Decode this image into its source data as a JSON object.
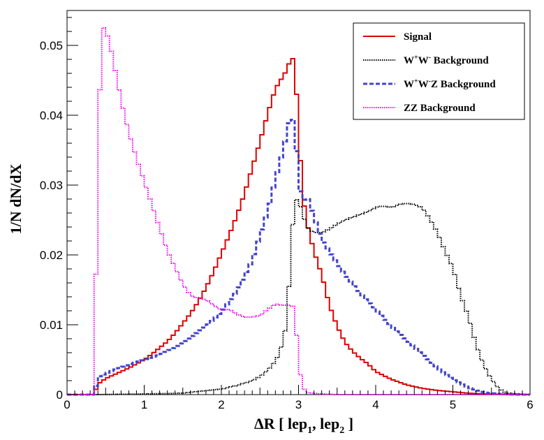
{
  "chart_data": {
    "type": "line",
    "title": "",
    "xlabel": "ΔR [ lep1, lep2 ]",
    "xlabel_parts": {
      "prefix": "ΔR [ lep",
      "sub1": "1",
      "mid": ", lep",
      "sub2": "2",
      "suffix": " ]"
    },
    "ylabel": "1/N dN/dX",
    "xlim": [
      0,
      6
    ],
    "ylim": [
      0,
      0.055
    ],
    "x_ticks": [
      "0",
      "1",
      "2",
      "3",
      "4",
      "5",
      "6"
    ],
    "y_ticks": [
      "0",
      "0.01",
      "0.02",
      "0.03",
      "0.04",
      "0.05"
    ],
    "bin_width": 0.05,
    "legend_position": "top-right",
    "series": [
      {
        "name": "Signal",
        "legend_parts": {
          "base": "Signal"
        },
        "color": "#dd0000",
        "dash": "solid",
        "x": [
          0.35,
          0.4,
          0.5,
          0.6,
          0.7,
          0.8,
          0.9,
          1.0,
          1.1,
          1.2,
          1.3,
          1.4,
          1.5,
          1.6,
          1.7,
          1.8,
          1.9,
          2.0,
          2.1,
          2.2,
          2.3,
          2.4,
          2.5,
          2.6,
          2.7,
          2.8,
          2.85,
          2.9,
          2.95,
          3.0,
          3.05,
          3.1,
          3.2,
          3.3,
          3.4,
          3.5,
          3.6,
          3.7,
          3.8,
          3.9,
          4.0,
          4.2,
          4.4,
          4.6,
          4.8,
          5.0,
          5.2,
          5.4,
          5.6,
          5.8,
          6.0
        ],
        "y": [
          0.0,
          0.0015,
          0.0023,
          0.0028,
          0.0033,
          0.0038,
          0.0044,
          0.005,
          0.0058,
          0.0067,
          0.0076,
          0.0088,
          0.0102,
          0.0116,
          0.0133,
          0.0153,
          0.0176,
          0.0202,
          0.0228,
          0.0256,
          0.0288,
          0.0325,
          0.0362,
          0.0402,
          0.0438,
          0.0456,
          0.0465,
          0.0482,
          0.048,
          0.038,
          0.029,
          0.025,
          0.0205,
          0.0172,
          0.0128,
          0.0098,
          0.0075,
          0.0062,
          0.0052,
          0.0044,
          0.0033,
          0.0022,
          0.0014,
          0.0009,
          0.0006,
          0.0004,
          0.0002,
          0.0001,
          5e-05,
          0.0,
          0.0
        ]
      },
      {
        "name": "W+W- Background",
        "legend_parts": {
          "base": "W",
          "sup1": "+",
          "mid": "W",
          "sup2": "-",
          "suffix": " Background"
        },
        "color": "#000000",
        "dash": "dotted",
        "x": [
          0.35,
          1.0,
          1.5,
          2.0,
          2.2,
          2.4,
          2.5,
          2.6,
          2.7,
          2.75,
          2.8,
          2.85,
          2.9,
          2.95,
          3.0,
          3.05,
          3.1,
          3.2,
          3.3,
          3.4,
          3.5,
          3.6,
          3.7,
          3.8,
          3.9,
          4.0,
          4.1,
          4.2,
          4.3,
          4.4,
          4.5,
          4.6,
          4.7,
          4.8,
          4.9,
          5.0,
          5.1,
          5.2,
          5.3,
          5.4,
          5.5,
          5.6,
          5.7,
          6.0
        ],
        "y": [
          0.0,
          0.0001,
          0.0002,
          0.0008,
          0.0013,
          0.002,
          0.0026,
          0.0035,
          0.0048,
          0.0058,
          0.0078,
          0.0105,
          0.0205,
          0.0282,
          0.0276,
          0.0262,
          0.024,
          0.0232,
          0.0232,
          0.0237,
          0.0244,
          0.025,
          0.0254,
          0.0258,
          0.0262,
          0.0268,
          0.027,
          0.0268,
          0.0272,
          0.0274,
          0.0272,
          0.0268,
          0.0252,
          0.0232,
          0.0205,
          0.0182,
          0.0142,
          0.0112,
          0.0072,
          0.0042,
          0.0022,
          0.0008,
          0.0002,
          0.0
        ]
      },
      {
        "name": "W+W-Z Background",
        "legend_parts": {
          "base": "W",
          "sup1": "+",
          "mid": "W",
          "sup2": "-",
          "suffix": "Z Background"
        },
        "color": "#4444cc",
        "dash": "dashed",
        "x": [
          0.35,
          0.4,
          0.6,
          0.8,
          1.0,
          1.2,
          1.4,
          1.6,
          1.8,
          2.0,
          2.2,
          2.4,
          2.5,
          2.6,
          2.7,
          2.8,
          2.85,
          2.9,
          2.95,
          3.0,
          3.05,
          3.1,
          3.2,
          3.3,
          3.4,
          3.5,
          3.6,
          3.8,
          4.0,
          4.2,
          4.4,
          4.6,
          4.8,
          5.0,
          5.2,
          5.4,
          5.6,
          5.8,
          6.0
        ],
        "y": [
          0.0,
          0.0025,
          0.0035,
          0.0043,
          0.005,
          0.0057,
          0.0068,
          0.0082,
          0.0098,
          0.0118,
          0.0148,
          0.0192,
          0.0228,
          0.0262,
          0.0308,
          0.035,
          0.0375,
          0.0402,
          0.0385,
          0.0312,
          0.027,
          0.0288,
          0.0255,
          0.0222,
          0.0205,
          0.0188,
          0.0172,
          0.0145,
          0.0122,
          0.0098,
          0.0078,
          0.0058,
          0.0038,
          0.0022,
          0.001,
          0.0003,
          0.0001,
          0.0,
          0.0
        ]
      },
      {
        "name": "ZZ Background",
        "legend_parts": {
          "base": "ZZ Background"
        },
        "color": "#ee00ee",
        "dash": "dotted",
        "x": [
          0.35,
          0.4,
          0.45,
          0.5,
          0.55,
          0.6,
          0.7,
          0.8,
          0.9,
          1.0,
          1.1,
          1.2,
          1.3,
          1.4,
          1.5,
          1.6,
          1.7,
          1.8,
          1.9,
          2.0,
          2.1,
          2.2,
          2.3,
          2.4,
          2.5,
          2.6,
          2.7,
          2.8,
          2.9,
          2.95,
          3.0,
          3.05,
          3.1,
          3.3,
          3.5,
          6.0
        ],
        "y": [
          0.0,
          0.0345,
          0.0528,
          0.0522,
          0.0505,
          0.0478,
          0.0422,
          0.0375,
          0.0338,
          0.0305,
          0.0272,
          0.0238,
          0.0206,
          0.0182,
          0.0158,
          0.0142,
          0.0138,
          0.0136,
          0.0128,
          0.0121,
          0.0122,
          0.0115,
          0.0111,
          0.0111,
          0.0113,
          0.0122,
          0.013,
          0.0128,
          0.0128,
          0.0125,
          0.0045,
          0.0012,
          0.0003,
          0.0001,
          0.0,
          0.0
        ]
      }
    ]
  }
}
